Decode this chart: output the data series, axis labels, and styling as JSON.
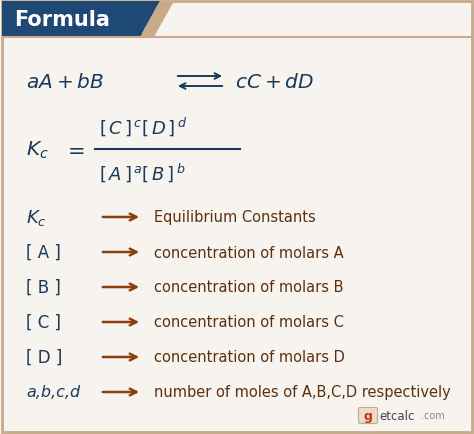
{
  "bg_color": "#f2ece4",
  "header_bg": "#1e4976",
  "header_text": "Formula",
  "header_text_color": "#ffffff",
  "body_bg": "#f7f3ee",
  "border_color": "#c8aa88",
  "eq_color": "#1a3a5c",
  "arrow_color": "#8b4010",
  "desc_color": "#5a3010",
  "figsize": [
    4.74,
    4.35
  ],
  "dpi": 100,
  "legend_items": [
    [
      "Kc",
      "Equilibrium Constants"
    ],
    [
      "[ A ]",
      "concentration of molars A"
    ],
    [
      "[ B ]",
      "concentration of molars B"
    ],
    [
      "[ C ]",
      "concentration of molars C"
    ],
    [
      "[ D ]",
      "concentration of molars D"
    ],
    [
      "a,b,c,d",
      "number of moles of A,B,C,D respectively"
    ]
  ]
}
